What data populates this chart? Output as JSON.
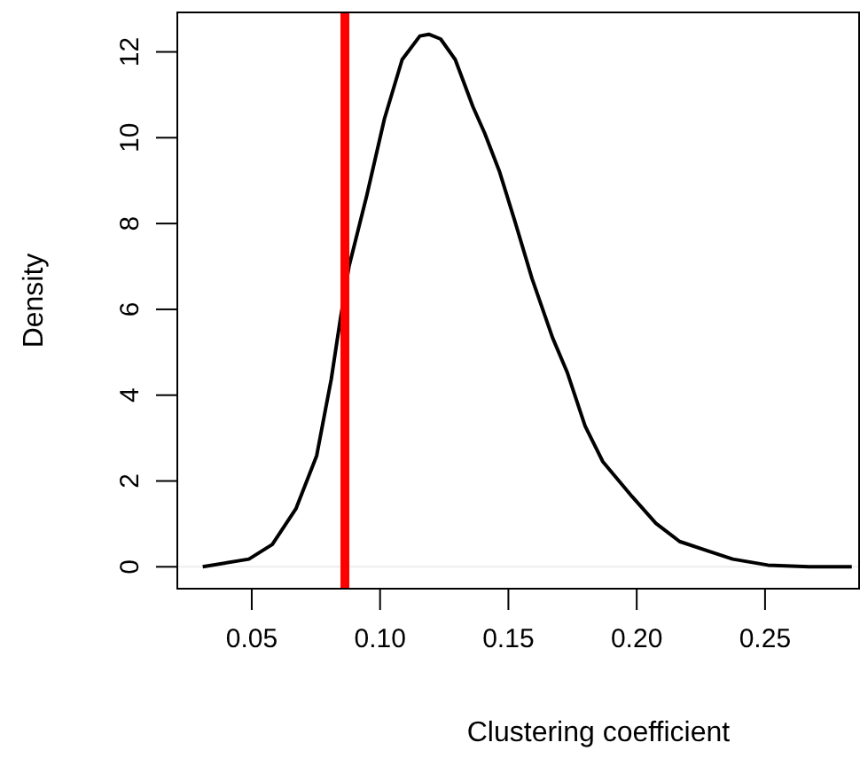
{
  "chart_data": {
    "type": "line",
    "xlabel": "Clustering coefficient",
    "ylabel": "Density",
    "xlim": [
      0.021,
      0.287
    ],
    "ylim": [
      -0.51,
      12.92
    ],
    "xticks": [
      {
        "value": 0.05,
        "label": "0.05"
      },
      {
        "value": 0.1,
        "label": "0.10"
      },
      {
        "value": 0.15,
        "label": "0.15"
      },
      {
        "value": 0.2,
        "label": "0.20"
      },
      {
        "value": 0.25,
        "label": "0.25"
      }
    ],
    "yticks": [
      0,
      2,
      4,
      6,
      8,
      10,
      12
    ],
    "grid": false,
    "marker": "none",
    "line_style": "solid",
    "series": [
      {
        "color": "#000000",
        "x": [
          0.0309,
          0.0489,
          0.058,
          0.0672,
          0.0753,
          0.081,
          0.0845,
          0.0879,
          0.0948,
          0.1017,
          0.1086,
          0.1155,
          0.119,
          0.1236,
          0.1293,
          0.1362,
          0.1408,
          0.1466,
          0.1523,
          0.1592,
          0.1672,
          0.173,
          0.1799,
          0.1868,
          0.1983,
          0.2075,
          0.2167,
          0.2282,
          0.2374,
          0.2511,
          0.2672,
          0.2838
        ],
        "values": [
          0,
          0.18,
          0.52,
          1.35,
          2.59,
          4.38,
          5.76,
          7.0,
          8.65,
          10.44,
          11.82,
          12.37,
          12.41,
          12.3,
          11.82,
          10.72,
          10.1,
          9.2,
          8.1,
          6.72,
          5.34,
          4.52,
          3.28,
          2.45,
          1.63,
          1.01,
          0.59,
          0.36,
          0.18,
          0.04,
          0,
          0
        ]
      }
    ],
    "ref_lines": [
      {
        "axis": "y",
        "value": 0,
        "color": "#eeeeee",
        "line_style": "solid"
      },
      {
        "axis": "x",
        "value": 0.0863,
        "color": "#ff0000",
        "line_style": "solid"
      }
    ]
  }
}
